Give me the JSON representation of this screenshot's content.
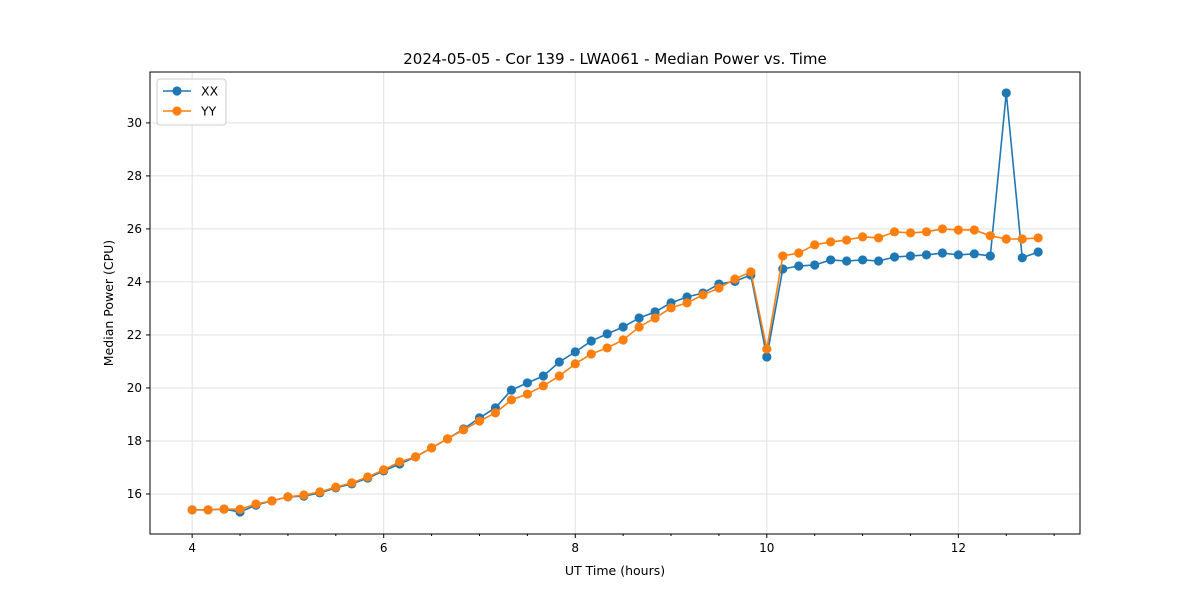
{
  "chart_data": {
    "type": "line",
    "title": "2024-05-05 - Cor 139 - LWA061 - Median Power vs. Time",
    "xlabel": "UT Time (hours)",
    "ylabel": "Median Power (CPU)",
    "xlim": [
      3.56,
      13.27
    ],
    "ylim": [
      14.49,
      31.92
    ],
    "xticks": [
      4,
      6,
      8,
      10,
      12
    ],
    "yticks": [
      16,
      18,
      20,
      22,
      24,
      26,
      28,
      30
    ],
    "grid": true,
    "legend_placement": "top-left",
    "x_start": 4.0,
    "x_step_hours": 0.16667,
    "series": [
      {
        "name": "XX",
        "color": "#1f77b4",
        "values": [
          15.4,
          15.4,
          15.43,
          15.32,
          15.58,
          15.74,
          15.89,
          15.92,
          16.04,
          16.23,
          16.38,
          16.6,
          16.87,
          17.13,
          17.4,
          17.74,
          18.08,
          18.45,
          18.87,
          19.25,
          19.92,
          20.19,
          20.45,
          20.98,
          21.36,
          21.77,
          22.04,
          22.3,
          22.64,
          22.87,
          23.21,
          23.43,
          23.58,
          23.92,
          24.02,
          24.26,
          21.17,
          24.49,
          24.6,
          24.64,
          24.83,
          24.79,
          24.83,
          24.79,
          24.94,
          24.98,
          25.02,
          25.09,
          25.02,
          25.06,
          24.98,
          31.13,
          24.91,
          25.13
        ]
      },
      {
        "name": "YY",
        "color": "#ff7f0e",
        "values": [
          15.4,
          15.4,
          15.43,
          15.42,
          15.62,
          15.74,
          15.89,
          15.96,
          16.08,
          16.26,
          16.42,
          16.64,
          16.91,
          17.21,
          17.4,
          17.74,
          18.08,
          18.42,
          18.75,
          19.06,
          19.55,
          19.77,
          20.08,
          20.45,
          20.91,
          21.28,
          21.51,
          21.81,
          22.3,
          22.64,
          23.02,
          23.21,
          23.51,
          23.77,
          24.11,
          24.38,
          21.47,
          24.98,
          25.09,
          25.4,
          25.51,
          25.58,
          25.7,
          25.66,
          25.89,
          25.85,
          25.89,
          26.0,
          25.96,
          25.96,
          25.74,
          25.62,
          25.62,
          25.66
        ]
      }
    ]
  }
}
